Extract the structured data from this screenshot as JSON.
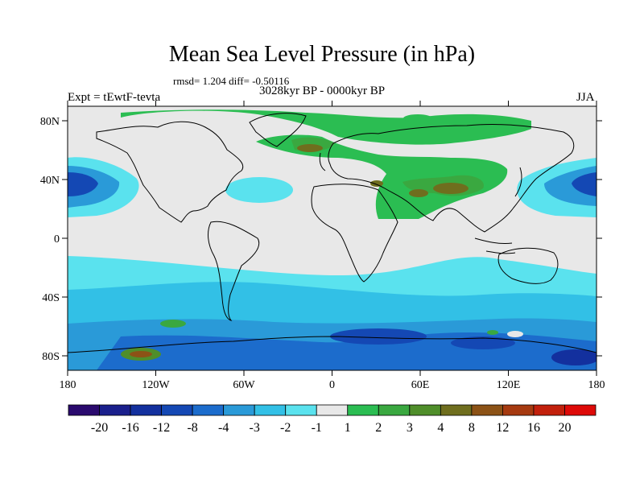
{
  "header": {
    "title": "Mean Sea Level Pressure (in hPa)",
    "stats": "rmsd= 1.204 diff= -0.50116",
    "period": "3028kyr BP - 0000kyr BP",
    "experiment": "Expt = tEwtF-tevta",
    "season": "JJA"
  },
  "axes": {
    "lat_labels": [
      "80N",
      "40N",
      "0",
      "40S",
      "80S"
    ],
    "lon_labels": [
      "180",
      "120W",
      "60W",
      "0",
      "60E",
      "120E",
      "180"
    ]
  },
  "colorbar": {
    "colors": [
      "#2a0a6e",
      "#1a1f8c",
      "#13309e",
      "#1448b4",
      "#1c6ccc",
      "#2a9ad8",
      "#32c0e6",
      "#5ae2ee",
      "#e8e8e8",
      "#2bbd52",
      "#3aa840",
      "#4f8e2a",
      "#6f6e1e",
      "#8c5216",
      "#a63a10",
      "#c2200c",
      "#de0a08"
    ],
    "labels": [
      "-20",
      "-16",
      "-12",
      "-8",
      "-4",
      "-3",
      "-2",
      "-1",
      "1",
      "2",
      "3",
      "4",
      "8",
      "12",
      "16",
      "20"
    ]
  },
  "palette": {
    "land_neutral": "#e8e8e8",
    "green": "#2bbd52",
    "dark_green": "#3aa840",
    "olive": "#6f6e1e",
    "light_cyan": "#5ae2ee",
    "cyan": "#32c0e6",
    "blue": "#2a9ad8",
    "mid_blue": "#1c6ccc",
    "deep_blue": "#1448b4",
    "navy": "#13309e"
  }
}
